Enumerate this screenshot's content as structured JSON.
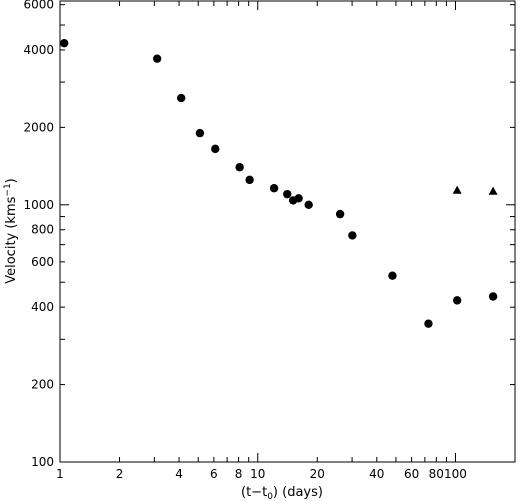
{
  "chart_data": {
    "type": "scatter",
    "title": "",
    "xlabel": "(t−t",
    "xlabel_sub": "0",
    "xlabel_tail": ") (days)",
    "ylabel": "Velocity (kms",
    "ylabel_sup": "−1",
    "ylabel_tail": ")",
    "x_scale": "log",
    "y_scale": "log",
    "xlim": [
      1,
      200
    ],
    "ylim": [
      100,
      6200
    ],
    "grid": false,
    "x_ticks": [
      {
        "value": 1,
        "label": "1"
      },
      {
        "value": 2,
        "label": "2"
      },
      {
        "value": 4,
        "label": "4"
      },
      {
        "value": 6,
        "label": "6"
      },
      {
        "value": 8,
        "label": "8"
      },
      {
        "value": 10,
        "label": "10"
      },
      {
        "value": 20,
        "label": "20"
      },
      {
        "value": 40,
        "label": "40"
      },
      {
        "value": 60,
        "label": "60"
      },
      {
        "value": 80,
        "label": "80"
      },
      {
        "value": 100,
        "label": "100"
      }
    ],
    "y_ticks": [
      {
        "value": 100,
        "label": "100"
      },
      {
        "value": 200,
        "label": "200"
      },
      {
        "value": 400,
        "label": "400"
      },
      {
        "value": 600,
        "label": "600"
      },
      {
        "value": 800,
        "label": "800"
      },
      {
        "value": 1000,
        "label": "1000"
      },
      {
        "value": 2000,
        "label": "2000"
      },
      {
        "value": 4000,
        "label": "4000"
      },
      {
        "value": 6000,
        "label": "6000"
      }
    ],
    "series": [
      {
        "marker": "circle",
        "points": [
          {
            "x": 1.05,
            "y": 4250
          },
          {
            "x": 3.1,
            "y": 3700
          },
          {
            "x": 4.1,
            "y": 2600
          },
          {
            "x": 5.1,
            "y": 1900
          },
          {
            "x": 6.1,
            "y": 1650
          },
          {
            "x": 8.1,
            "y": 1400
          },
          {
            "x": 9.1,
            "y": 1250
          },
          {
            "x": 12.1,
            "y": 1160
          },
          {
            "x": 14.1,
            "y": 1100
          },
          {
            "x": 15.1,
            "y": 1040
          },
          {
            "x": 16.1,
            "y": 1060
          },
          {
            "x": 18.1,
            "y": 1000
          },
          {
            "x": 26.1,
            "y": 920
          },
          {
            "x": 30.1,
            "y": 760
          },
          {
            "x": 48,
            "y": 530
          },
          {
            "x": 73,
            "y": 345
          },
          {
            "x": 102,
            "y": 425
          },
          {
            "x": 155,
            "y": 440
          }
        ]
      },
      {
        "marker": "triangle",
        "points": [
          {
            "x": 102,
            "y": 1140
          },
          {
            "x": 155,
            "y": 1130
          }
        ]
      }
    ]
  }
}
